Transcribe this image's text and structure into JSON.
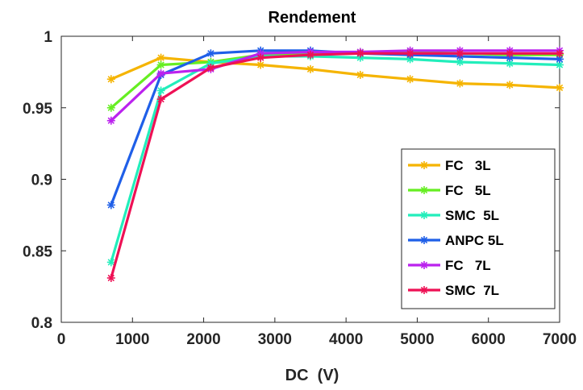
{
  "chart_data": {
    "type": "line",
    "title": "Rendement",
    "xlabel": "DC  (V)",
    "ylabel": "",
    "xlim": [
      0,
      7000
    ],
    "ylim": [
      0.8,
      1
    ],
    "xticks": [
      0,
      1000,
      2000,
      3000,
      4000,
      5000,
      6000,
      7000
    ],
    "xtick_labels": [
      "0",
      "1000",
      "2000",
      "3000",
      "4000",
      "5000",
      "6000",
      "7000"
    ],
    "yticks": [
      0.8,
      0.85,
      0.9,
      0.95,
      1
    ],
    "ytick_labels": [
      "0.8",
      "0.85",
      "0.9",
      "0.95",
      "1"
    ],
    "grid": false,
    "legend_position": "lower-right",
    "x": [
      700,
      1400,
      2100,
      2800,
      3500,
      4200,
      4900,
      5600,
      6300,
      7000
    ],
    "series": [
      {
        "name": "FC   3L",
        "color": "#f5b400",
        "values": [
          0.97,
          0.985,
          0.982,
          0.98,
          0.977,
          0.973,
          0.97,
          0.967,
          0.966,
          0.964
        ]
      },
      {
        "name": "FC   5L",
        "color": "#66ee22",
        "values": [
          0.95,
          0.98,
          0.982,
          0.987,
          0.988,
          0.989,
          0.989,
          0.988,
          0.987,
          0.987
        ]
      },
      {
        "name": "SMC  5L",
        "color": "#22eebb",
        "values": [
          0.842,
          0.962,
          0.981,
          0.986,
          0.986,
          0.985,
          0.984,
          0.982,
          0.981,
          0.98
        ]
      },
      {
        "name": "ANPC 5L",
        "color": "#1f5fe8",
        "values": [
          0.882,
          0.973,
          0.988,
          0.99,
          0.99,
          0.988,
          0.987,
          0.986,
          0.985,
          0.984
        ]
      },
      {
        "name": "FC   7L",
        "color": "#bb22ee",
        "values": [
          0.941,
          0.974,
          0.977,
          0.988,
          0.989,
          0.989,
          0.99,
          0.99,
          0.99,
          0.99
        ]
      },
      {
        "name": "SMC  7L",
        "color": "#ee1155",
        "values": [
          0.831,
          0.956,
          0.978,
          0.985,
          0.987,
          0.988,
          0.988,
          0.988,
          0.988,
          0.988
        ]
      }
    ]
  }
}
